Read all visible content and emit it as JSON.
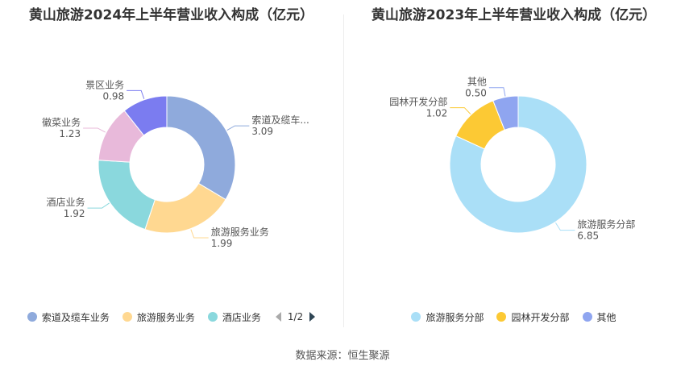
{
  "chart_data": [
    {
      "type": "pie",
      "title": "黄山旅游2024年上半年营业收入构成（亿元）",
      "colors": [
        "#8faadc",
        "#ffd891",
        "#8ad8dd",
        "#e8b9da",
        "#7b7cf0"
      ],
      "slices": [
        {
          "name": "索道及缆车业务",
          "label": "索道及缆车...",
          "value": 3.09,
          "value_label": "3.09"
        },
        {
          "name": "旅游服务业务",
          "label": "旅游服务业务",
          "value": 1.99,
          "value_label": "1.99"
        },
        {
          "name": "酒店业务",
          "label": "酒店业务",
          "value": 1.92,
          "value_label": "1.92"
        },
        {
          "name": "徽菜业务",
          "label": "徽菜业务",
          "value": 1.23,
          "value_label": "1.23"
        },
        {
          "name": "景区业务",
          "label": "景区业务",
          "value": 0.98,
          "value_label": "0.98"
        }
      ],
      "legend": {
        "shown": [
          "索道及缆车业务",
          "旅游服务业务",
          "酒店业务"
        ],
        "page": "1/2"
      }
    },
    {
      "type": "pie",
      "title": "黄山旅游2023年上半年营业收入构成（亿元）",
      "colors": [
        "#aadff7",
        "#fcc934",
        "#8fa5f0"
      ],
      "slices": [
        {
          "name": "旅游服务分部",
          "label": "旅游服务分部",
          "value": 6.85,
          "value_label": "6.85"
        },
        {
          "name": "园林开发分部",
          "label": "园林开发分部",
          "value": 1.02,
          "value_label": "1.02"
        },
        {
          "name": "其他",
          "label": "其他",
          "value": 0.5,
          "value_label": "0.50"
        }
      ],
      "legend": {
        "shown": [
          "旅游服务分部",
          "园林开发分部",
          "其他"
        ]
      }
    }
  ],
  "source": "数据来源：恒生聚源"
}
